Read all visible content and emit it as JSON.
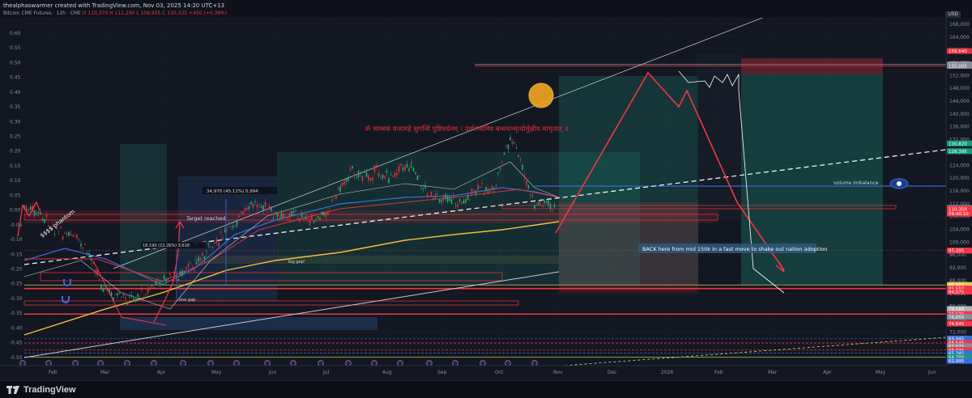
{
  "header": {
    "creator": "thealphaswarmer created with TradingView.com, Nov 03, 2025 14:20 UTC+13",
    "symbol": "Bitcoin CME Futures · 12h · CME",
    "ohlc": "O 110,370  H 111,290  L 109,935  C 110,335  +450 (+0.39%)",
    "currency": "USD"
  },
  "chart_data": {
    "type": "line",
    "y_left": {
      "ticks": [
        "0.60",
        "0.55",
        "0.50",
        "0.45",
        "0.40",
        "0.35",
        "0.30",
        "0.25",
        "0.20",
        "0.15",
        "0.10",
        "0.05",
        "0.00",
        "-0.05",
        "-0.10",
        "-0.15",
        "-0.20",
        "-0.25",
        "-0.30",
        "-0.35",
        "-0.40",
        "-0.45",
        "-0.50",
        "-0.55"
      ]
    },
    "y_right": {
      "ticks": [
        "168,000",
        "164,000",
        "160,000",
        "156,000",
        "152,000",
        "148,000",
        "144,000",
        "140,000",
        "136,000",
        "132,000",
        "128,000",
        "124,000",
        "120,000",
        "116,000",
        "112,000",
        "108,000",
        "104,000",
        "100,000",
        "96,000",
        "92,000",
        "88,000",
        "84,000",
        "80,000",
        "76,000",
        "72,000",
        "68,000",
        "64,000"
      ],
      "range": [
        62500,
        170000
      ]
    },
    "price_labels": [
      {
        "value": "159,640",
        "price": 159640,
        "color": "#e0303f"
      },
      {
        "value": "155,460",
        "price": 155460,
        "color": "#888c96"
      },
      {
        "value": "155,005",
        "price": 155005,
        "color": "#888c96"
      },
      {
        "value": "130,820",
        "price": 130820,
        "color": "#159a7a"
      },
      {
        "value": "128,395",
        "price": 128395,
        "color": "#159a7a"
      },
      {
        "value": "110,725",
        "price": 110725,
        "color": "#787b86"
      },
      {
        "value": "110,350",
        "price": 110350,
        "color": "#f23645"
      },
      {
        "value": "09:40:10",
        "price": 108900,
        "color": "#f23645"
      },
      {
        "value": "97,395",
        "price": 97395,
        "color": "#f23645"
      },
      {
        "value": "86,660",
        "price": 86660,
        "color": "#e0c85a"
      },
      {
        "value": "85,550",
        "price": 85550,
        "color": "#f23645"
      },
      {
        "value": "84,575",
        "price": 84575,
        "color": "#f23645"
      },
      {
        "value": "79,160",
        "price": 79160,
        "color": "#b0b3bc"
      },
      {
        "value": "77,575",
        "price": 77575,
        "color": "#f23645"
      },
      {
        "value": "76,655",
        "price": 76655,
        "color": "#888c96"
      },
      {
        "value": "74,645",
        "price": 74645,
        "color": "#f23645"
      },
      {
        "value": "69,945",
        "price": 69945,
        "color": "#3b6fd8"
      },
      {
        "value": "68,545",
        "price": 68545,
        "color": "#f23645"
      },
      {
        "value": "67,575",
        "price": 67575,
        "color": "#888c96"
      },
      {
        "value": "66,345",
        "price": 66345,
        "color": "#f23645"
      },
      {
        "value": "65,345",
        "price": 65345,
        "color": "#3b6fd8"
      },
      {
        "value": "64,200",
        "price": 64200,
        "color": "#159a7a"
      },
      {
        "value": "62,995",
        "price": 62995,
        "color": "#3b6fd8"
      }
    ],
    "x_ticks": [
      "Feb",
      "Mar",
      "Apr",
      "May",
      "Jun",
      "Jul",
      "Aug",
      "Sep",
      "Oct",
      "Nov",
      "Dec",
      "2026",
      "Feb",
      "Mar",
      "Apr",
      "May",
      "Jun"
    ],
    "annotations": {
      "phantom": "$$$$ phantom",
      "target": "Target reached",
      "measure1": "34,970 (45.11%) 5,994",
      "measure2": "18,190 (23.26%) 3,618",
      "big_gap": "big gap!",
      "one_gap": "one gap",
      "mantra": "ॐ त्र्यम्बकं यजामहे सुगन्धिं पुष्टिवर्धनम् । उर्वारुकमिव बन्धनान्मृत्योर्मुक्षीय मामृतात् ॥",
      "volume_imbalance": "volume imbalance",
      "back_here": "BACK here from mid 150k in a fast move to shake out nation adoption"
    }
  },
  "footer": {
    "brand": "TradingView"
  }
}
